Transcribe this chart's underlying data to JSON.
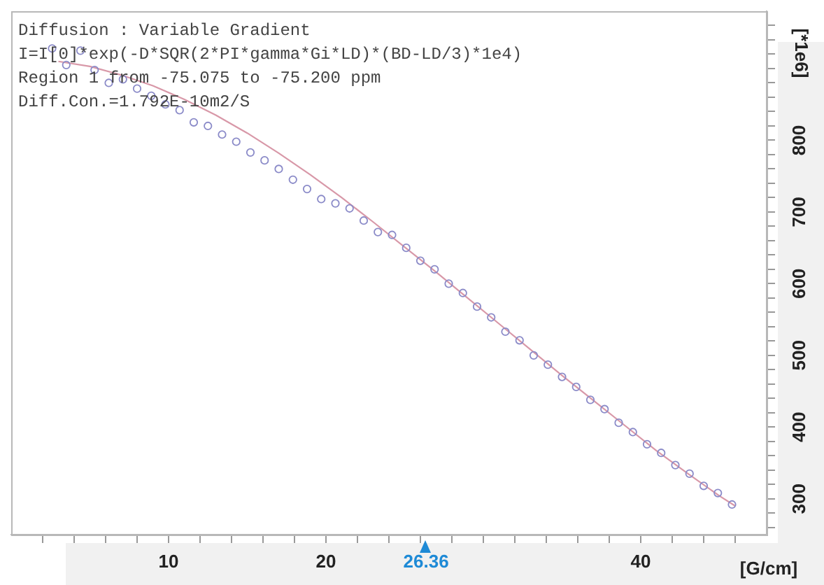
{
  "chart_data": {
    "type": "scatter",
    "title": "Diffusion : Variable Gradient",
    "annotations": [
      "I=I[0]*exp(-D*SQR(2*PI*gamma*Gi*LD)*(BD-LD/3)*1e4)",
      "Region 1 from -75.075 to -75.200 ppm",
      "Diff.Con.=1.792E-10m2/S"
    ],
    "xlabel": "[G/cm]",
    "ylabel": "[*1e6]",
    "xlim": [
      0,
      48
    ],
    "ylim": [
      250,
      980
    ],
    "xticks": [
      {
        "value": 2,
        "label": null
      },
      {
        "value": 4,
        "label": null
      },
      {
        "value": 6,
        "label": null
      },
      {
        "value": 8,
        "label": null
      },
      10,
      {
        "value": 12,
        "label": null
      },
      {
        "value": 14,
        "label": null
      },
      {
        "value": 16,
        "label": null
      },
      {
        "value": 18,
        "label": null
      },
      20,
      {
        "value": 22,
        "label": null
      },
      {
        "value": 24,
        "label": null
      },
      {
        "value": 26,
        "label": null
      },
      {
        "value": 26.36,
        "label": "26.36"
      },
      {
        "value": 28,
        "label": null
      },
      {
        "value": 30,
        "label": null
      },
      {
        "value": 32,
        "label": null
      },
      {
        "value": 34,
        "label": null
      },
      {
        "value": 36,
        "label": null
      },
      {
        "value": 38,
        "label": null
      },
      40,
      {
        "value": 42,
        "label": null
      },
      {
        "value": 44,
        "label": null
      },
      {
        "value": 46,
        "label": null
      }
    ],
    "yticks": [
      {
        "value": 260,
        "label": null
      },
      {
        "value": 280,
        "label": null
      },
      300,
      {
        "value": 320,
        "label": null
      },
      {
        "value": 340,
        "label": null
      },
      {
        "value": 360,
        "label": null
      },
      {
        "value": 380,
        "label": null
      },
      400,
      {
        "value": 420,
        "label": null
      },
      {
        "value": 440,
        "label": null
      },
      {
        "value": 460,
        "label": null
      },
      {
        "value": 480,
        "label": null
      },
      500,
      {
        "value": 520,
        "label": null
      },
      {
        "value": 540,
        "label": null
      },
      {
        "value": 560,
        "label": null
      },
      {
        "value": 580,
        "label": null
      },
      600,
      {
        "value": 620,
        "label": null
      },
      {
        "value": 640,
        "label": null
      },
      {
        "value": 660,
        "label": null
      },
      {
        "value": 680,
        "label": null
      },
      700,
      {
        "value": 720,
        "label": null
      },
      {
        "value": 740,
        "label": null
      },
      {
        "value": 760,
        "label": null
      },
      {
        "value": 780,
        "label": null
      },
      800,
      {
        "value": 820,
        "label": null
      },
      {
        "value": 840,
        "label": null
      },
      {
        "value": 860,
        "label": null
      },
      {
        "value": 880,
        "label": null
      },
      {
        "value": 900,
        "label": null
      },
      {
        "value": 920,
        "label": null
      },
      {
        "value": 940,
        "label": null
      },
      {
        "value": 960,
        "label": null
      }
    ],
    "grid": false,
    "legend": false,
    "series": [
      {
        "type": "scatter",
        "color": "#8a8ac8",
        "marker": "circle",
        "x": [
          2.6,
          3.5,
          4.4,
          5.3,
          6.2,
          7.1,
          8.0,
          8.9,
          9.8,
          10.7,
          11.6,
          12.5,
          13.4,
          14.3,
          15.2,
          16.1,
          17.0,
          17.9,
          18.8,
          19.7,
          20.6,
          21.5,
          22.4,
          23.3,
          24.2,
          25.1,
          26.0,
          26.9,
          27.8,
          28.7,
          29.6,
          30.5,
          31.4,
          32.3,
          33.2,
          34.1,
          35.0,
          35.9,
          36.8,
          37.7,
          38.6,
          39.5,
          40.4,
          41.3,
          42.2,
          43.1,
          44.0,
          44.9,
          45.8
        ],
        "values": [
          928,
          905,
          925,
          898,
          880,
          885,
          872,
          862,
          850,
          842,
          825,
          820,
          808,
          798,
          783,
          772,
          760,
          745,
          732,
          718,
          712,
          705,
          688,
          672,
          668,
          650,
          632,
          620,
          600,
          587,
          568,
          553,
          533,
          521,
          500,
          487,
          470,
          456,
          438,
          425,
          406,
          393,
          376,
          364,
          347,
          335,
          318,
          308,
          292
        ]
      },
      {
        "type": "line",
        "color": "#d898a8",
        "marker": "none",
        "x": [
          3,
          5,
          7,
          9,
          11,
          13,
          15,
          17,
          19,
          21,
          23,
          25,
          27,
          29,
          31,
          33,
          35,
          37,
          39,
          41,
          43,
          45,
          46
        ],
        "values": [
          910,
          903,
          891,
          876,
          857,
          835,
          810,
          782,
          752,
          720,
          686,
          651,
          616,
          580,
          544,
          508,
          472,
          437,
          402,
          367,
          335,
          304,
          290
        ]
      }
    ]
  }
}
